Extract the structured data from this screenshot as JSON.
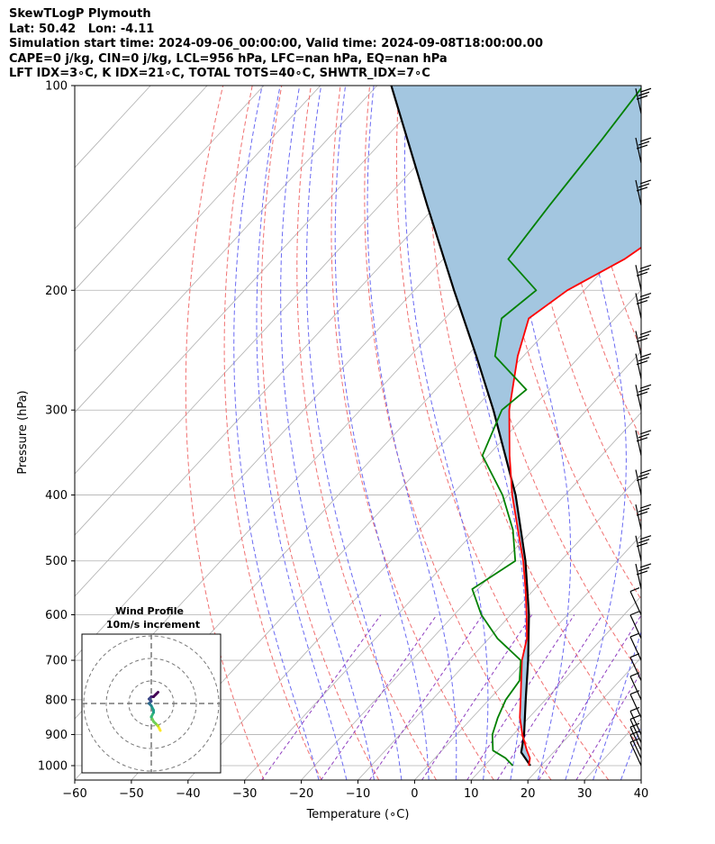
{
  "header": {
    "title": "SkewTLogP Plymouth",
    "location": "Lat: 50.42   Lon: -4.11",
    "times": "Simulation start time: 2024-09-06_00:00:00, Valid time: 2024-09-08T18:00:00.00",
    "params1": "CAPE=0 j/kg, CIN=0 j/kg, LCL=956 hPa, LFC=nan hPa, EQ=nan hPa",
    "params2": "LFT IDX=3∘C, K IDX=21∘C, TOTAL TOTS=40∘C, SHWTR_IDX=7∘C"
  },
  "chart_data": {
    "type": "line",
    "title": "SkewTLogP Plymouth",
    "xlabel": "Temperature (∘C)",
    "ylabel": "Pressure (hPa)",
    "xlim": [
      -60,
      40
    ],
    "ylim": [
      1050,
      100
    ],
    "y_scale": "log",
    "skew": "skewed temperature isotherms",
    "x_ticks": [
      -60,
      -50,
      -40,
      -30,
      -20,
      -10,
      0,
      10,
      20,
      30,
      40
    ],
    "y_ticks": [
      1000,
      900,
      800,
      700,
      600,
      500,
      400,
      300,
      200,
      100
    ],
    "x_tick_labels": [
      "−60",
      "−50",
      "−40",
      "−30",
      "−20",
      "−10",
      "0",
      "10",
      "20",
      "30",
      "40"
    ],
    "y_tick_labels": [
      "1000",
      "900",
      "800",
      "700",
      "600",
      "500",
      "400",
      "300",
      "200",
      "100"
    ],
    "grid": true,
    "colors": {
      "temperature": "#ff0000",
      "dewpoint": "#008000",
      "parcel": "#000000",
      "fill": "#a3c6e0",
      "dry_adiabat": "#f07070",
      "moist_adiabat": "#6a6af2",
      "mixing_ratio": "#9040c0",
      "isotherm": "#b0b0b0"
    },
    "series": [
      {
        "name": "temperature",
        "pressure": [
          1000,
          975,
          950,
          900,
          850,
          800,
          750,
          700,
          650,
          600,
          550,
          500,
          450,
          400,
          350,
          300,
          250,
          220,
          200,
          180,
          150,
          130,
          115,
          100
        ],
        "temperature": [
          17.8,
          16.8,
          15.0,
          11.6,
          8.4,
          5.6,
          2.6,
          -0.6,
          -3.3,
          -7.2,
          -11.6,
          -16.6,
          -22.6,
          -29.3,
          -36.2,
          -43.7,
          -51.0,
          -55.2,
          -53.0,
          -48.0,
          -43.0,
          -40.0,
          -38.5,
          -36.0
        ]
      },
      {
        "name": "dewpoint",
        "pressure": [
          1000,
          975,
          950,
          900,
          850,
          800,
          750,
          700,
          650,
          600,
          550,
          500,
          450,
          400,
          350,
          300,
          280,
          250,
          220,
          200,
          180,
          150,
          120,
          100
        ],
        "temperature": [
          15.0,
          12.5,
          9.0,
          6.3,
          4.5,
          3.0,
          2.3,
          -0.8,
          -8.5,
          -15.2,
          -21.0,
          -18.0,
          -23.5,
          -31.0,
          -41.0,
          -45.0,
          -44.0,
          -55.0,
          -60.0,
          -58.5,
          -68.5,
          -70.0,
          -71.5,
          -73.0
        ]
      },
      {
        "name": "parcel",
        "pressure": [
          1000,
          956,
          900,
          800,
          700,
          600,
          500,
          400,
          300,
          250,
          200,
          150,
          100
        ],
        "temperature": [
          18.1,
          14.3,
          11.9,
          6.5,
          0.5,
          -6.8,
          -16.2,
          -28.7,
          -46.5,
          -58.3,
          -73.0,
          -91.6,
          -117.5
        ]
      }
    ],
    "wind_barbs": {
      "pressure": [
        1000,
        975,
        950,
        925,
        900,
        850,
        800,
        750,
        700,
        650,
        600,
        550,
        500,
        450,
        400,
        350,
        300,
        270,
        250,
        220,
        200,
        150,
        130,
        110
      ],
      "count": 24
    },
    "hodograph": {
      "title": "Wind Profile",
      "subtitle": "10m/s increment",
      "rings_ms": [
        10,
        20,
        30
      ],
      "u": [
        4,
        3,
        2,
        1,
        0,
        1,
        1,
        0,
        -1,
        0,
        -1,
        0,
        1,
        2,
        3
      ],
      "v": [
        -12,
        -10,
        -9,
        -8,
        -6,
        -4,
        -3,
        -1,
        0,
        1,
        2,
        3,
        3,
        4,
        5
      ]
    }
  }
}
